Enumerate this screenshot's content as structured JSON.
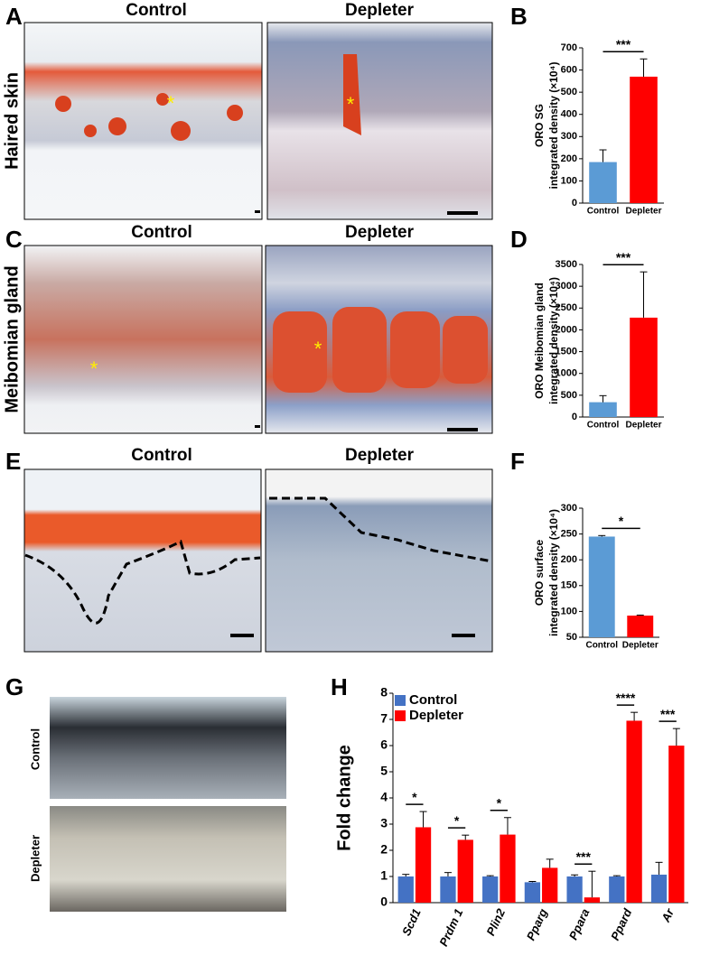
{
  "panel_labels": [
    "A",
    "B",
    "C",
    "D",
    "E",
    "F",
    "G",
    "H"
  ],
  "images": {
    "row_a": {
      "left_title": "Control",
      "right_title": "Depleter",
      "row_label": "Haired skin",
      "marker": "*"
    },
    "row_c": {
      "left_title": "Control",
      "right_title": "Depleter",
      "row_label": "Meibomian gland",
      "marker": "*"
    },
    "row_e": {
      "left_title": "Control",
      "right_title": "Depleter"
    },
    "row_g": {
      "top_label": "Control",
      "bottom_label": "Depleter"
    }
  },
  "chart_data": [
    {
      "type": "bar",
      "ylabel": [
        "ORO SG",
        "integrated density (×10⁴)"
      ],
      "categories": [
        "Control",
        "Depleter"
      ],
      "values": [
        185,
        570
      ],
      "errors": [
        55,
        80
      ],
      "colors": [
        "#5b9bd5",
        "#ff0000"
      ],
      "ylim": [
        0,
        700
      ],
      "yticks": [
        0,
        100,
        200,
        300,
        400,
        500,
        600,
        700
      ],
      "significance": "***"
    },
    {
      "type": "bar",
      "ylabel": [
        "ORO Meibomian gland",
        "integrated density (×10⁴)"
      ],
      "categories": [
        "Control",
        "Depleter"
      ],
      "values": [
        340,
        2280
      ],
      "errors": [
        150,
        1050
      ],
      "colors": [
        "#5b9bd5",
        "#ff0000"
      ],
      "ylim": [
        0,
        3500
      ],
      "yticks": [
        0,
        500,
        1000,
        1500,
        2000,
        2500,
        3000,
        3500
      ],
      "significance": "***"
    },
    {
      "type": "bar",
      "ylabel": [
        "ORO surface",
        "integrated density (×10⁴)"
      ],
      "categories": [
        "Control",
        "Depleter"
      ],
      "values": [
        245,
        92
      ],
      "errors": [
        2,
        1
      ],
      "colors": [
        "#5b9bd5",
        "#ff0000"
      ],
      "ylim": [
        50,
        300
      ],
      "yticks": [
        50,
        100,
        150,
        200,
        250,
        300
      ],
      "significance": "*"
    },
    {
      "type": "bar",
      "ylabel": "Fold change",
      "legend": "upper left",
      "categories": [
        "Scd1",
        "Prdm 1",
        "Plin2",
        "Pparg",
        "Ppara",
        "Ppard",
        "Ar"
      ],
      "series": [
        {
          "name": "Control",
          "color": "#4472c4",
          "values": [
            1.0,
            1.0,
            1.0,
            0.78,
            1.0,
            1.0,
            1.07
          ],
          "errors": [
            0.08,
            0.15,
            0.03,
            0.03,
            0.06,
            0.03,
            0.47
          ]
        },
        {
          "name": "Depleter",
          "color": "#ff0000",
          "values": [
            2.88,
            2.4,
            2.6,
            1.33,
            0.2,
            6.95,
            6.0
          ],
          "errors": [
            0.6,
            0.18,
            0.65,
            0.33,
            1.0,
            0.32,
            0.65
          ]
        }
      ],
      "ylim": [
        0,
        8
      ],
      "yticks": [
        0,
        1,
        2,
        3,
        4,
        5,
        6,
        7,
        8
      ],
      "significance": [
        "*",
        "*",
        "*",
        null,
        "***",
        "****",
        "***"
      ]
    }
  ]
}
